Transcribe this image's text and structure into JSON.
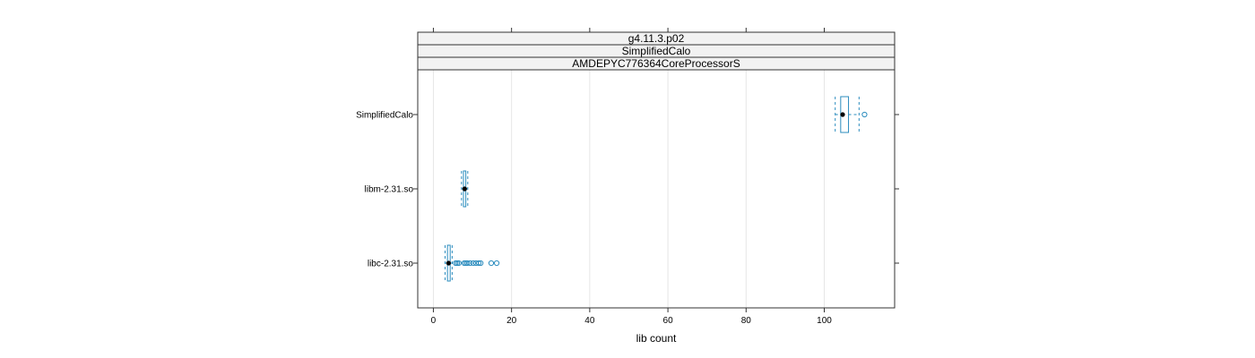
{
  "chart_data": {
    "type": "boxplot",
    "orientation": "horizontal",
    "strips": [
      "g4.11.3.p02",
      "SimplifiedCalo",
      "AMDEPYC776364CoreProcessorS"
    ],
    "xlabel": "lib count",
    "xlim": [
      -4,
      118
    ],
    "xticks": [
      0,
      20,
      40,
      60,
      80,
      100
    ],
    "grid": true,
    "colors": {
      "box": "#2b8cbe",
      "median": "#000000",
      "grid": "#e6e6e6",
      "strip_bg": "#f2f2f2",
      "frame": "#333333"
    },
    "categories": [
      "libc-2.31.so",
      "libm-2.31.so",
      "SimplifiedCalo"
    ],
    "boxes": [
      {
        "name": "libc-2.31.so",
        "whisker_low": 3,
        "q1": 3.6,
        "median": 3.9,
        "q3": 4.3,
        "whisker_high": 4.8,
        "outliers": [
          5.7,
          6.1,
          6.5,
          7.9,
          8.3,
          8.7,
          9.4,
          10.2,
          10.9,
          11.6,
          12.1,
          14.8,
          16.2
        ]
      },
      {
        "name": "libm-2.31.so",
        "whisker_low": 7.2,
        "q1": 7.7,
        "median": 8.0,
        "q3": 8.3,
        "whisker_high": 8.8,
        "outliers": []
      },
      {
        "name": "SimplifiedCalo",
        "whisker_low": 102.8,
        "q1": 104.2,
        "median": 104.7,
        "q3": 106.2,
        "whisker_high": 108.9,
        "outliers": [
          110.3
        ]
      }
    ]
  }
}
